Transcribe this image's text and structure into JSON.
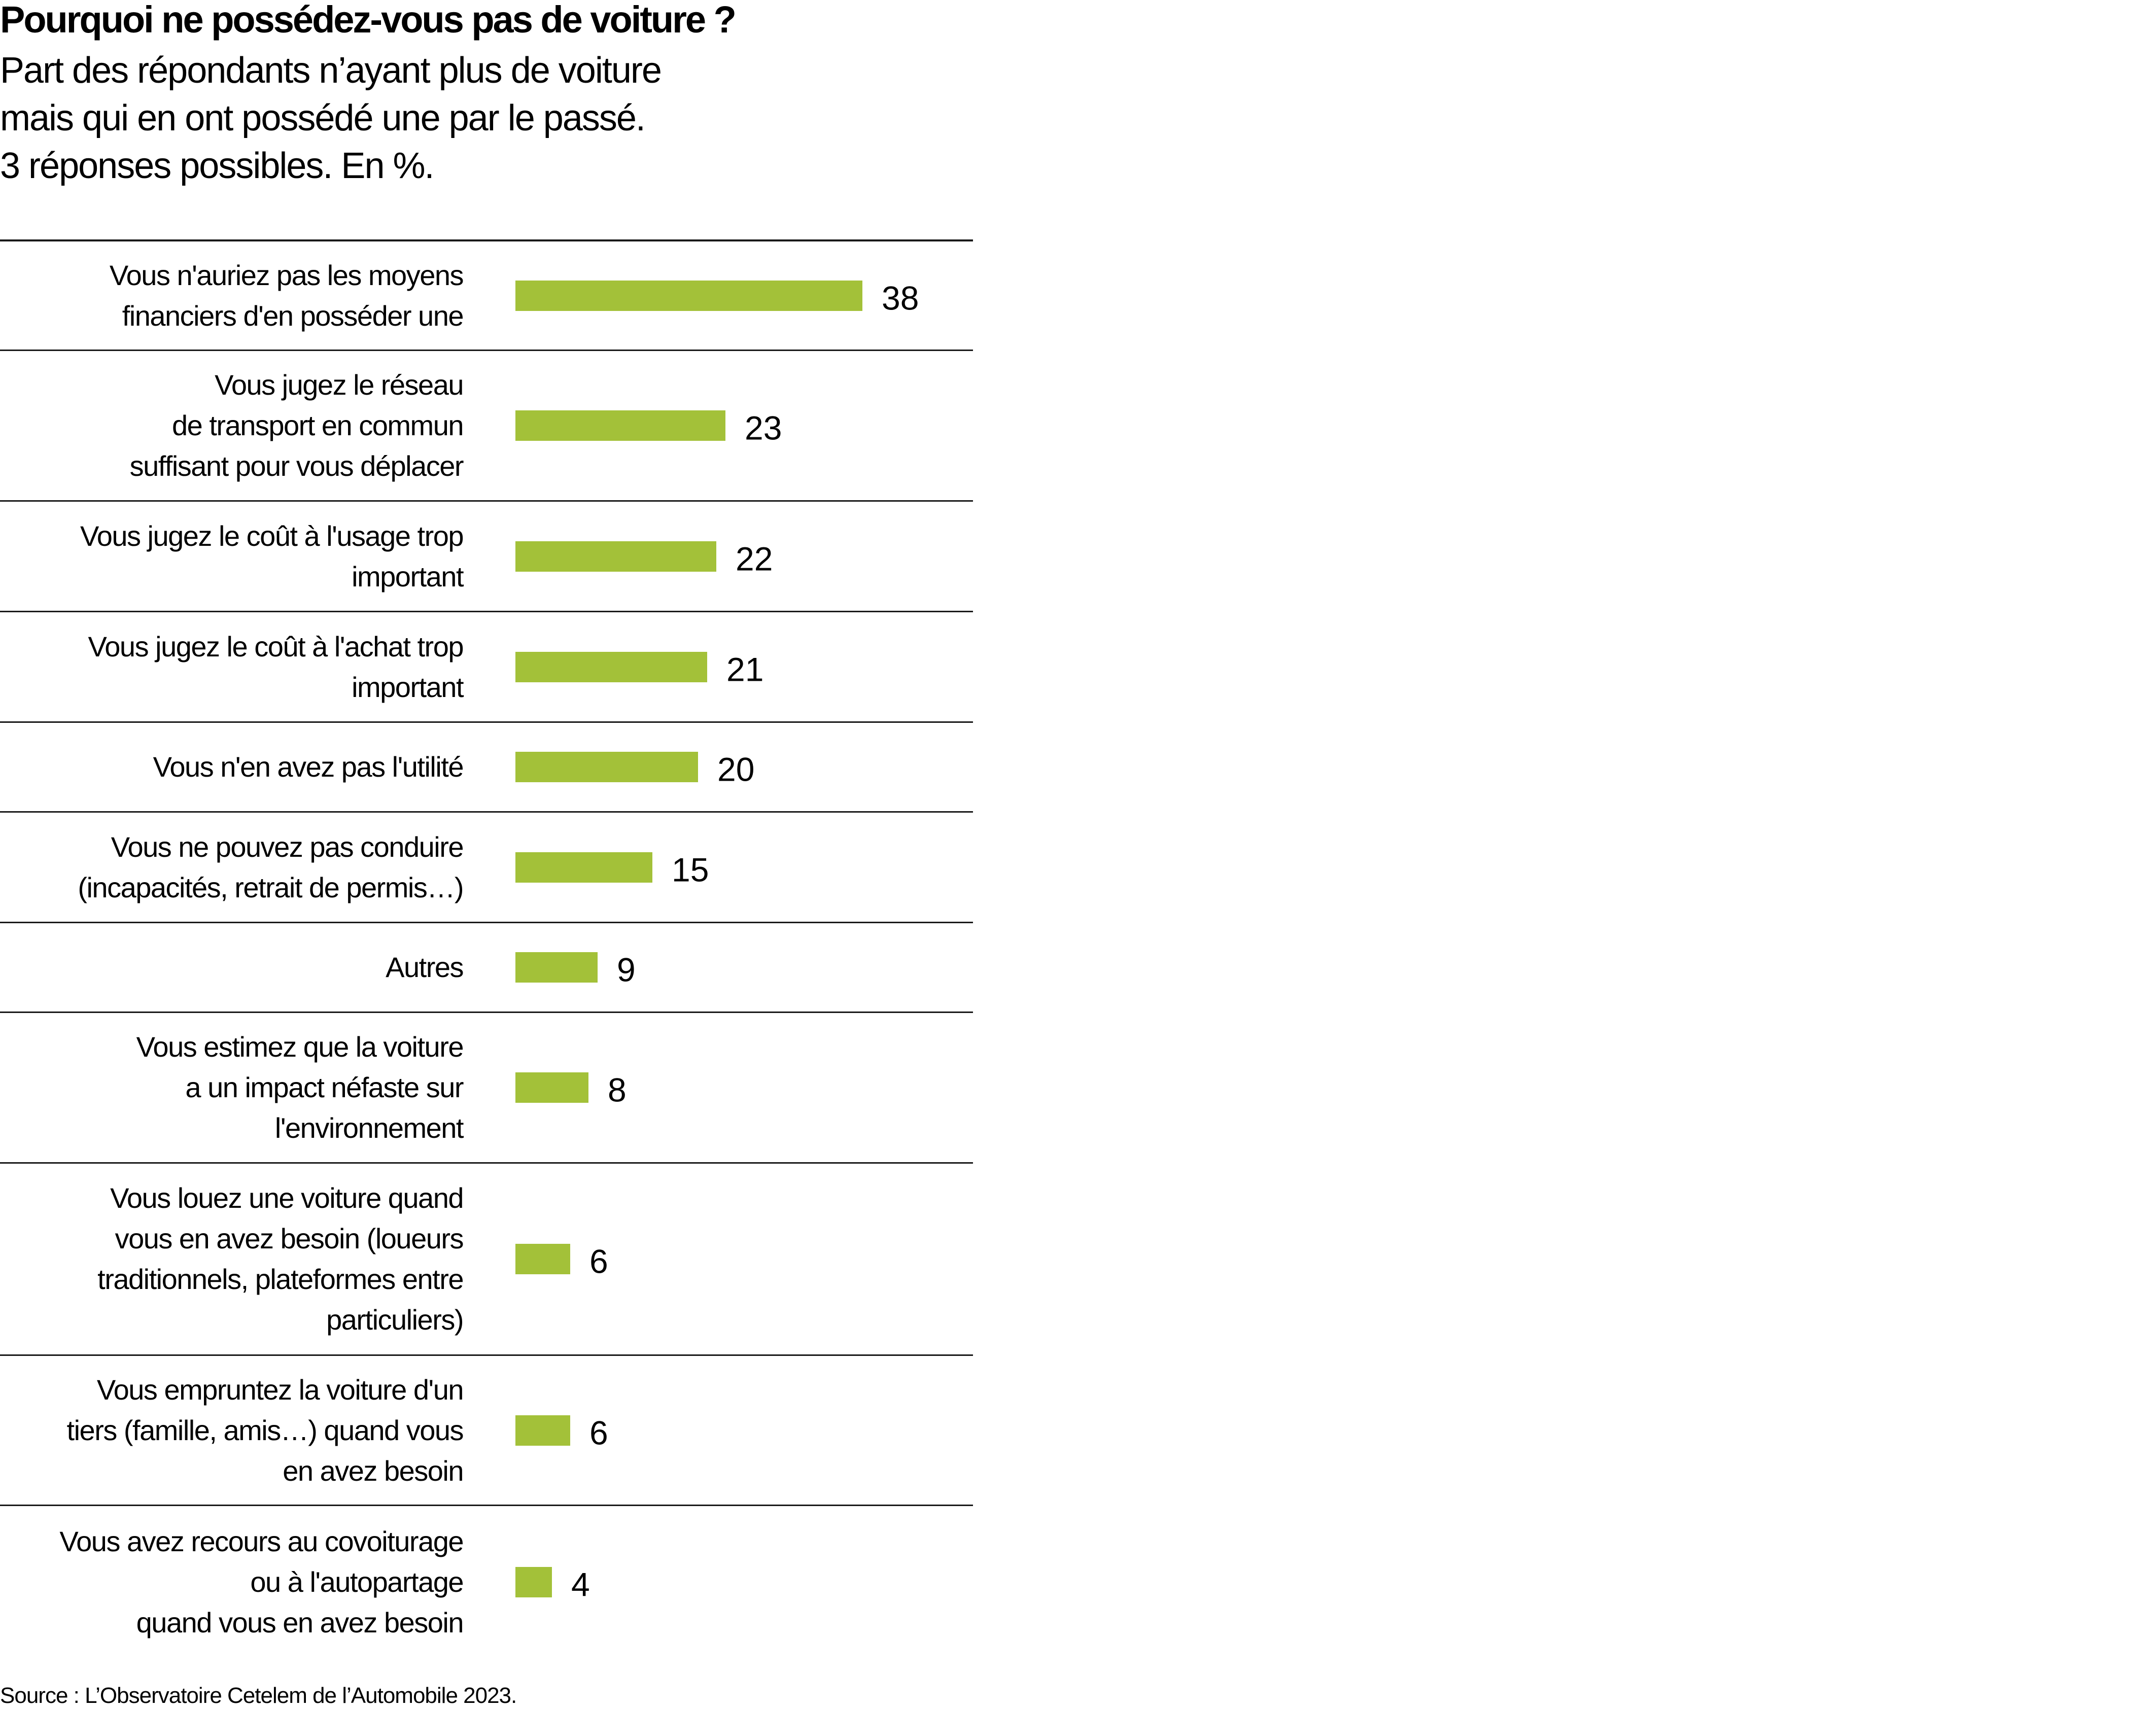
{
  "title": "Pourquoi ne possédez-vous pas de voiture ?",
  "subtitle": [
    "Part des répondants n’ayant plus de voiture",
    "mais qui en ont possédé une par le passé.",
    "3 réponses possibles. En %."
  ],
  "source": "Source : L’Observatoire Cetelem de l’Automobile 2023.",
  "colors": {
    "bar": "#a3c139",
    "rule": "#1a1a1a"
  },
  "chart_data": {
    "type": "bar",
    "orientation": "horizontal",
    "title": "Pourquoi ne possédez-vous pas de voiture ?",
    "xlabel": "",
    "ylabel": "",
    "unit": "%",
    "xlim": [
      0,
      38
    ],
    "categories": [
      [
        "Vous n'auriez pas les moyens",
        "financiers d'en posséder une"
      ],
      [
        "Vous jugez le réseau",
        "de transport en commun",
        "suffisant pour vous déplacer"
      ],
      [
        "Vous jugez le coût à l'usage trop",
        "important"
      ],
      [
        "Vous jugez le coût à l'achat trop",
        "important"
      ],
      [
        "Vous n'en avez pas l'utilité"
      ],
      [
        "Vous ne pouvez pas conduire",
        "(incapacités, retrait de permis…)"
      ],
      [
        "Autres"
      ],
      [
        "Vous estimez que la voiture",
        "a un impact néfaste sur",
        "l'environnement"
      ],
      [
        "Vous louez une voiture quand",
        "vous en avez besoin (loueurs",
        "traditionnels, plateformes entre",
        "particuliers)"
      ],
      [
        "Vous empruntez la voiture d'un",
        "tiers (famille, amis…) quand vous",
        "en avez besoin"
      ],
      [
        "Vous avez recours au covoiturage",
        "ou à l'autopartage",
        "quand vous en avez besoin"
      ]
    ],
    "values": [
      38,
      23,
      22,
      21,
      20,
      15,
      9,
      8,
      6,
      6,
      4
    ]
  }
}
